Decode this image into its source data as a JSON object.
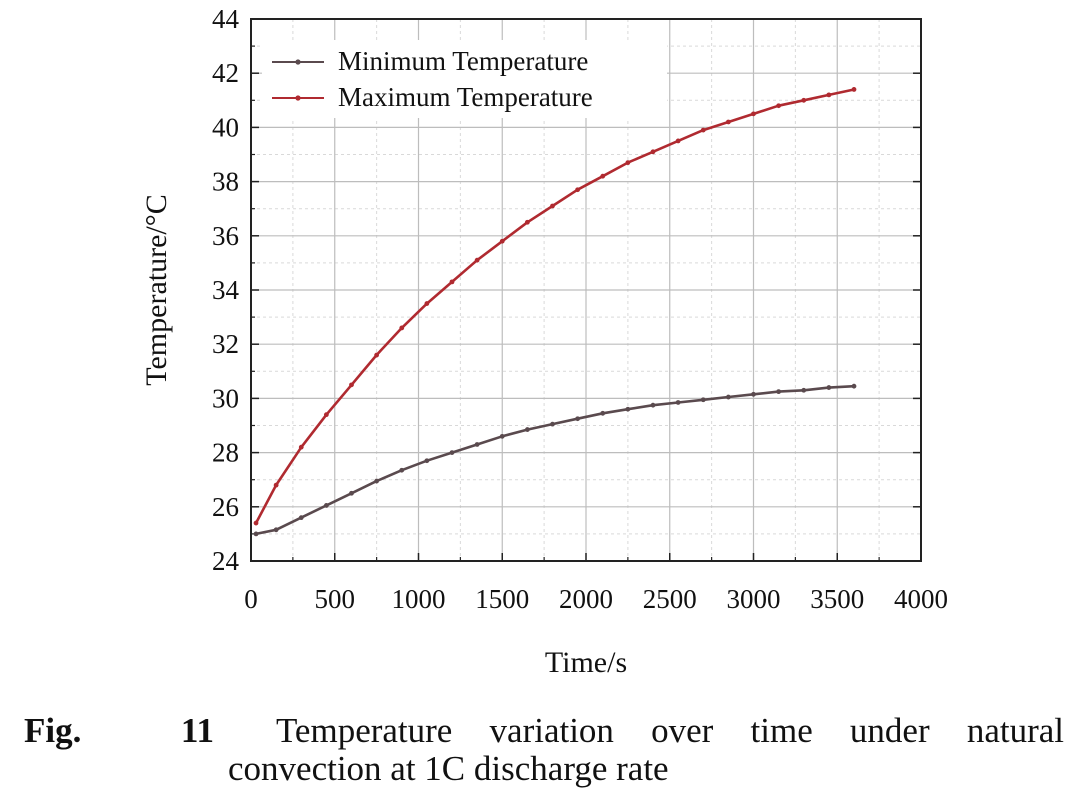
{
  "chart_data": {
    "type": "line",
    "title": "",
    "xlabel": "Time/s",
    "ylabel": "Temperature/°C",
    "xlim": [
      0,
      4000
    ],
    "ylim": [
      24,
      44
    ],
    "x_ticks": [
      0,
      500,
      1000,
      1500,
      2000,
      2500,
      3000,
      3500,
      4000
    ],
    "y_ticks": [
      24,
      26,
      28,
      30,
      32,
      34,
      36,
      38,
      40,
      42,
      44
    ],
    "grid": true,
    "legend_position": "top-left",
    "x": [
      30,
      150,
      300,
      450,
      600,
      750,
      900,
      1050,
      1200,
      1350,
      1500,
      1650,
      1800,
      1950,
      2100,
      2250,
      2400,
      2550,
      2700,
      2850,
      3000,
      3150,
      3300,
      3450,
      3600
    ],
    "series": [
      {
        "name": "Minimum Temperature",
        "color": "#5a4a4e",
        "values": [
          25.0,
          25.15,
          25.6,
          26.05,
          26.5,
          26.95,
          27.35,
          27.7,
          28.0,
          28.3,
          28.6,
          28.85,
          29.05,
          29.25,
          29.45,
          29.6,
          29.75,
          29.85,
          29.95,
          30.05,
          30.15,
          30.25,
          30.3,
          30.4,
          30.45
        ]
      },
      {
        "name": "Maximum Temperature",
        "color": "#b02a30",
        "values": [
          25.4,
          26.8,
          28.2,
          29.4,
          30.5,
          31.6,
          32.6,
          33.5,
          34.3,
          35.1,
          35.8,
          36.5,
          37.1,
          37.7,
          38.2,
          38.7,
          39.1,
          39.5,
          39.9,
          40.2,
          40.5,
          40.8,
          41.0,
          41.2,
          41.4
        ]
      }
    ]
  },
  "caption": {
    "label_word": "Fig.",
    "label_number": "11",
    "line1_words": [
      "Temperature",
      "variation",
      "over",
      "time",
      "under",
      "natural"
    ],
    "line2": "convection at 1C discharge rate"
  }
}
